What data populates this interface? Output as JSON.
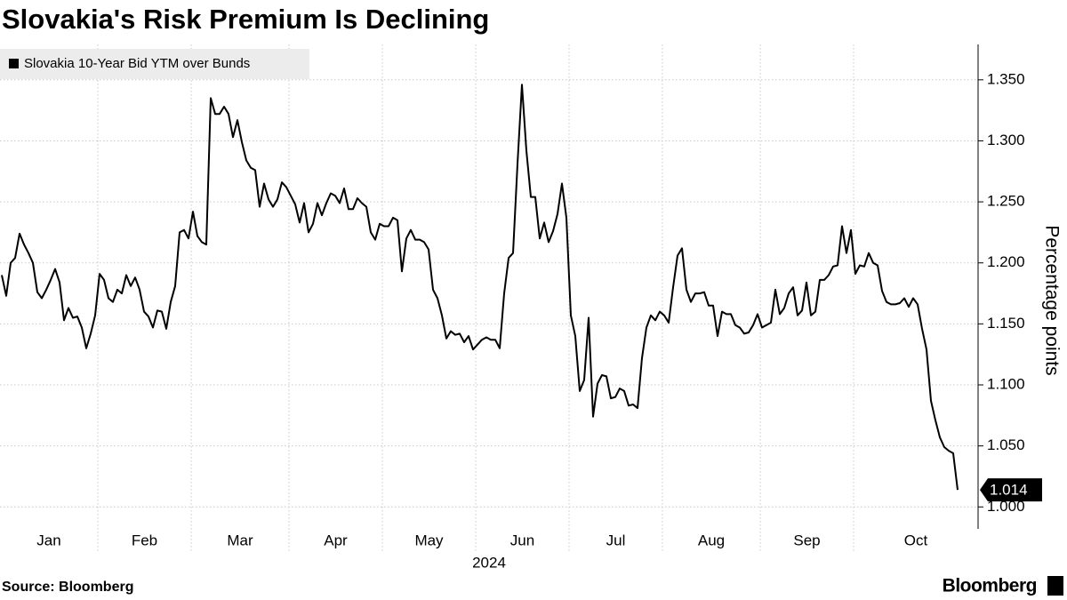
{
  "chart_data": {
    "type": "line",
    "title": "Slovakia's Risk Premium Is Declining",
    "source": "Source: Bloomberg",
    "brand": "Bloomberg",
    "y_label": "Percentage points",
    "x_label": "2024",
    "legend": "top-left",
    "grid": true,
    "ylim": [
      0.982,
      1.379
    ],
    "yticks": [
      {
        "value": 1.0,
        "label": "1.000"
      },
      {
        "value": 1.05,
        "label": "1.050"
      },
      {
        "value": 1.1,
        "label": "1.100"
      },
      {
        "value": 1.15,
        "label": "1.150"
      },
      {
        "value": 1.2,
        "label": "1.200"
      },
      {
        "value": 1.25,
        "label": "1.250"
      },
      {
        "value": 1.3,
        "label": "1.300"
      },
      {
        "value": 1.35,
        "label": "1.350"
      }
    ],
    "categories": [
      "Jan",
      null,
      null,
      null,
      null,
      null,
      null,
      null,
      null,
      null,
      null,
      null,
      null,
      null,
      null,
      null,
      null,
      null,
      null,
      null,
      null,
      null,
      "Feb",
      null,
      null,
      null,
      null,
      null,
      null,
      null,
      null,
      null,
      null,
      null,
      null,
      null,
      null,
      null,
      null,
      null,
      null,
      null,
      null,
      "Mar",
      null,
      null,
      null,
      null,
      null,
      null,
      null,
      null,
      null,
      null,
      null,
      null,
      null,
      null,
      null,
      null,
      null,
      null,
      null,
      null,
      null,
      "Apr",
      null,
      null,
      null,
      null,
      null,
      null,
      null,
      null,
      null,
      null,
      null,
      null,
      null,
      null,
      null,
      null,
      null,
      null,
      null,
      null,
      "May",
      null,
      null,
      null,
      null,
      null,
      null,
      null,
      null,
      null,
      null,
      null,
      null,
      null,
      null,
      null,
      null,
      null,
      null,
      null,
      null,
      "Jun",
      null,
      null,
      null,
      null,
      null,
      null,
      null,
      null,
      null,
      null,
      null,
      null,
      null,
      null,
      null,
      null,
      null,
      null,
      null,
      null,
      "Jul",
      null,
      null,
      null,
      null,
      null,
      null,
      null,
      null,
      null,
      null,
      null,
      null,
      null,
      null,
      null,
      null,
      null,
      null,
      null,
      null,
      "Aug",
      null,
      null,
      null,
      null,
      null,
      null,
      null,
      null,
      null,
      null,
      null,
      null,
      null,
      null,
      null,
      null,
      null,
      null,
      null,
      null,
      null,
      "Sep",
      null,
      null,
      null,
      null,
      null,
      null,
      null,
      null,
      null,
      null,
      null,
      null,
      null,
      null,
      null,
      null,
      null,
      null,
      null,
      null,
      "Oct",
      null,
      null,
      null,
      null,
      null,
      null,
      null,
      null,
      null,
      null,
      null,
      null,
      null,
      null,
      null,
      null,
      null,
      null,
      null,
      null,
      null,
      null,
      null
    ],
    "series": [
      {
        "name": "Slovakia 10-Year Bid YTM over Bunds",
        "color": "#000000",
        "values": [
          1.19,
          1.173,
          1.2,
          1.204,
          1.224,
          1.215,
          1.208,
          1.2,
          1.176,
          1.171,
          1.178,
          1.186,
          1.195,
          1.184,
          1.153,
          1.163,
          1.155,
          1.156,
          1.147,
          1.13,
          1.142,
          1.157,
          1.191,
          1.186,
          1.171,
          1.168,
          1.178,
          1.175,
          1.19,
          1.181,
          1.188,
          1.178,
          1.16,
          1.156,
          1.147,
          1.161,
          1.16,
          1.146,
          1.168,
          1.181,
          1.225,
          1.227,
          1.22,
          1.242,
          1.222,
          1.217,
          1.215,
          1.335,
          1.322,
          1.322,
          1.328,
          1.322,
          1.303,
          1.317,
          1.299,
          1.284,
          1.278,
          1.276,
          1.246,
          1.265,
          1.252,
          1.246,
          1.252,
          1.266,
          1.262,
          1.255,
          1.248,
          1.233,
          1.249,
          1.225,
          1.232,
          1.249,
          1.239,
          1.249,
          1.257,
          1.255,
          1.249,
          1.261,
          1.244,
          1.244,
          1.253,
          1.249,
          1.246,
          1.225,
          1.219,
          1.232,
          1.23,
          1.23,
          1.237,
          1.235,
          1.193,
          1.22,
          1.227,
          1.219,
          1.219,
          1.217,
          1.211,
          1.178,
          1.171,
          1.157,
          1.138,
          1.144,
          1.141,
          1.142,
          1.135,
          1.14,
          1.129,
          1.133,
          1.137,
          1.139,
          1.137,
          1.137,
          1.13,
          1.175,
          1.204,
          1.208,
          1.281,
          1.346,
          1.292,
          1.254,
          1.254,
          1.22,
          1.233,
          1.217,
          1.226,
          1.24,
          1.265,
          1.237,
          1.157,
          1.14,
          1.095,
          1.104,
          1.155,
          1.074,
          1.101,
          1.108,
          1.107,
          1.089,
          1.09,
          1.097,
          1.095,
          1.083,
          1.084,
          1.081,
          1.122,
          1.147,
          1.157,
          1.153,
          1.16,
          1.157,
          1.151,
          1.18,
          1.206,
          1.212,
          1.178,
          1.168,
          1.175,
          1.175,
          1.176,
          1.165,
          1.165,
          1.14,
          1.16,
          1.158,
          1.158,
          1.149,
          1.147,
          1.142,
          1.143,
          1.149,
          1.158,
          1.147,
          1.149,
          1.151,
          1.178,
          1.158,
          1.163,
          1.175,
          1.18,
          1.157,
          1.161,
          1.184,
          1.157,
          1.16,
          1.186,
          1.186,
          1.19,
          1.197,
          1.198,
          1.23,
          1.208,
          1.227,
          1.191,
          1.198,
          1.197,
          1.208,
          1.2,
          1.198,
          1.177,
          1.168,
          1.166,
          1.166,
          1.167,
          1.171,
          1.164,
          1.171,
          1.166,
          1.146,
          1.129,
          1.087,
          1.071,
          1.057,
          1.049,
          1.046,
          1.044,
          1.014
        ]
      }
    ]
  }
}
